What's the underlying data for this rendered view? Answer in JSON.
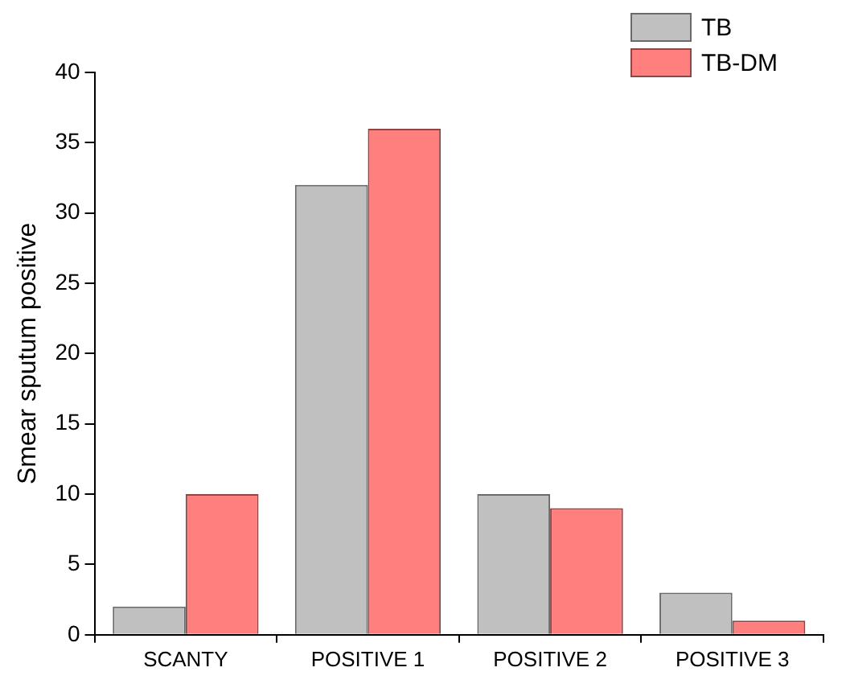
{
  "chart_data": {
    "type": "bar",
    "ylabel": "Smear sputum positive",
    "categories": [
      "SCANTY",
      "POSITIVE 1",
      "POSITIVE 2",
      "POSITIVE 3"
    ],
    "series": [
      {
        "name": "TB",
        "color": "#c0c0c0",
        "values": [
          2,
          32,
          10,
          3
        ]
      },
      {
        "name": "TB-DM",
        "color": "#ff7f7f",
        "values": [
          10,
          36,
          9,
          1
        ]
      }
    ],
    "ylim": [
      0,
      40
    ],
    "yticks": [
      0,
      5,
      10,
      15,
      20,
      25,
      30,
      35,
      40
    ],
    "grid": false,
    "legend": "top right"
  }
}
